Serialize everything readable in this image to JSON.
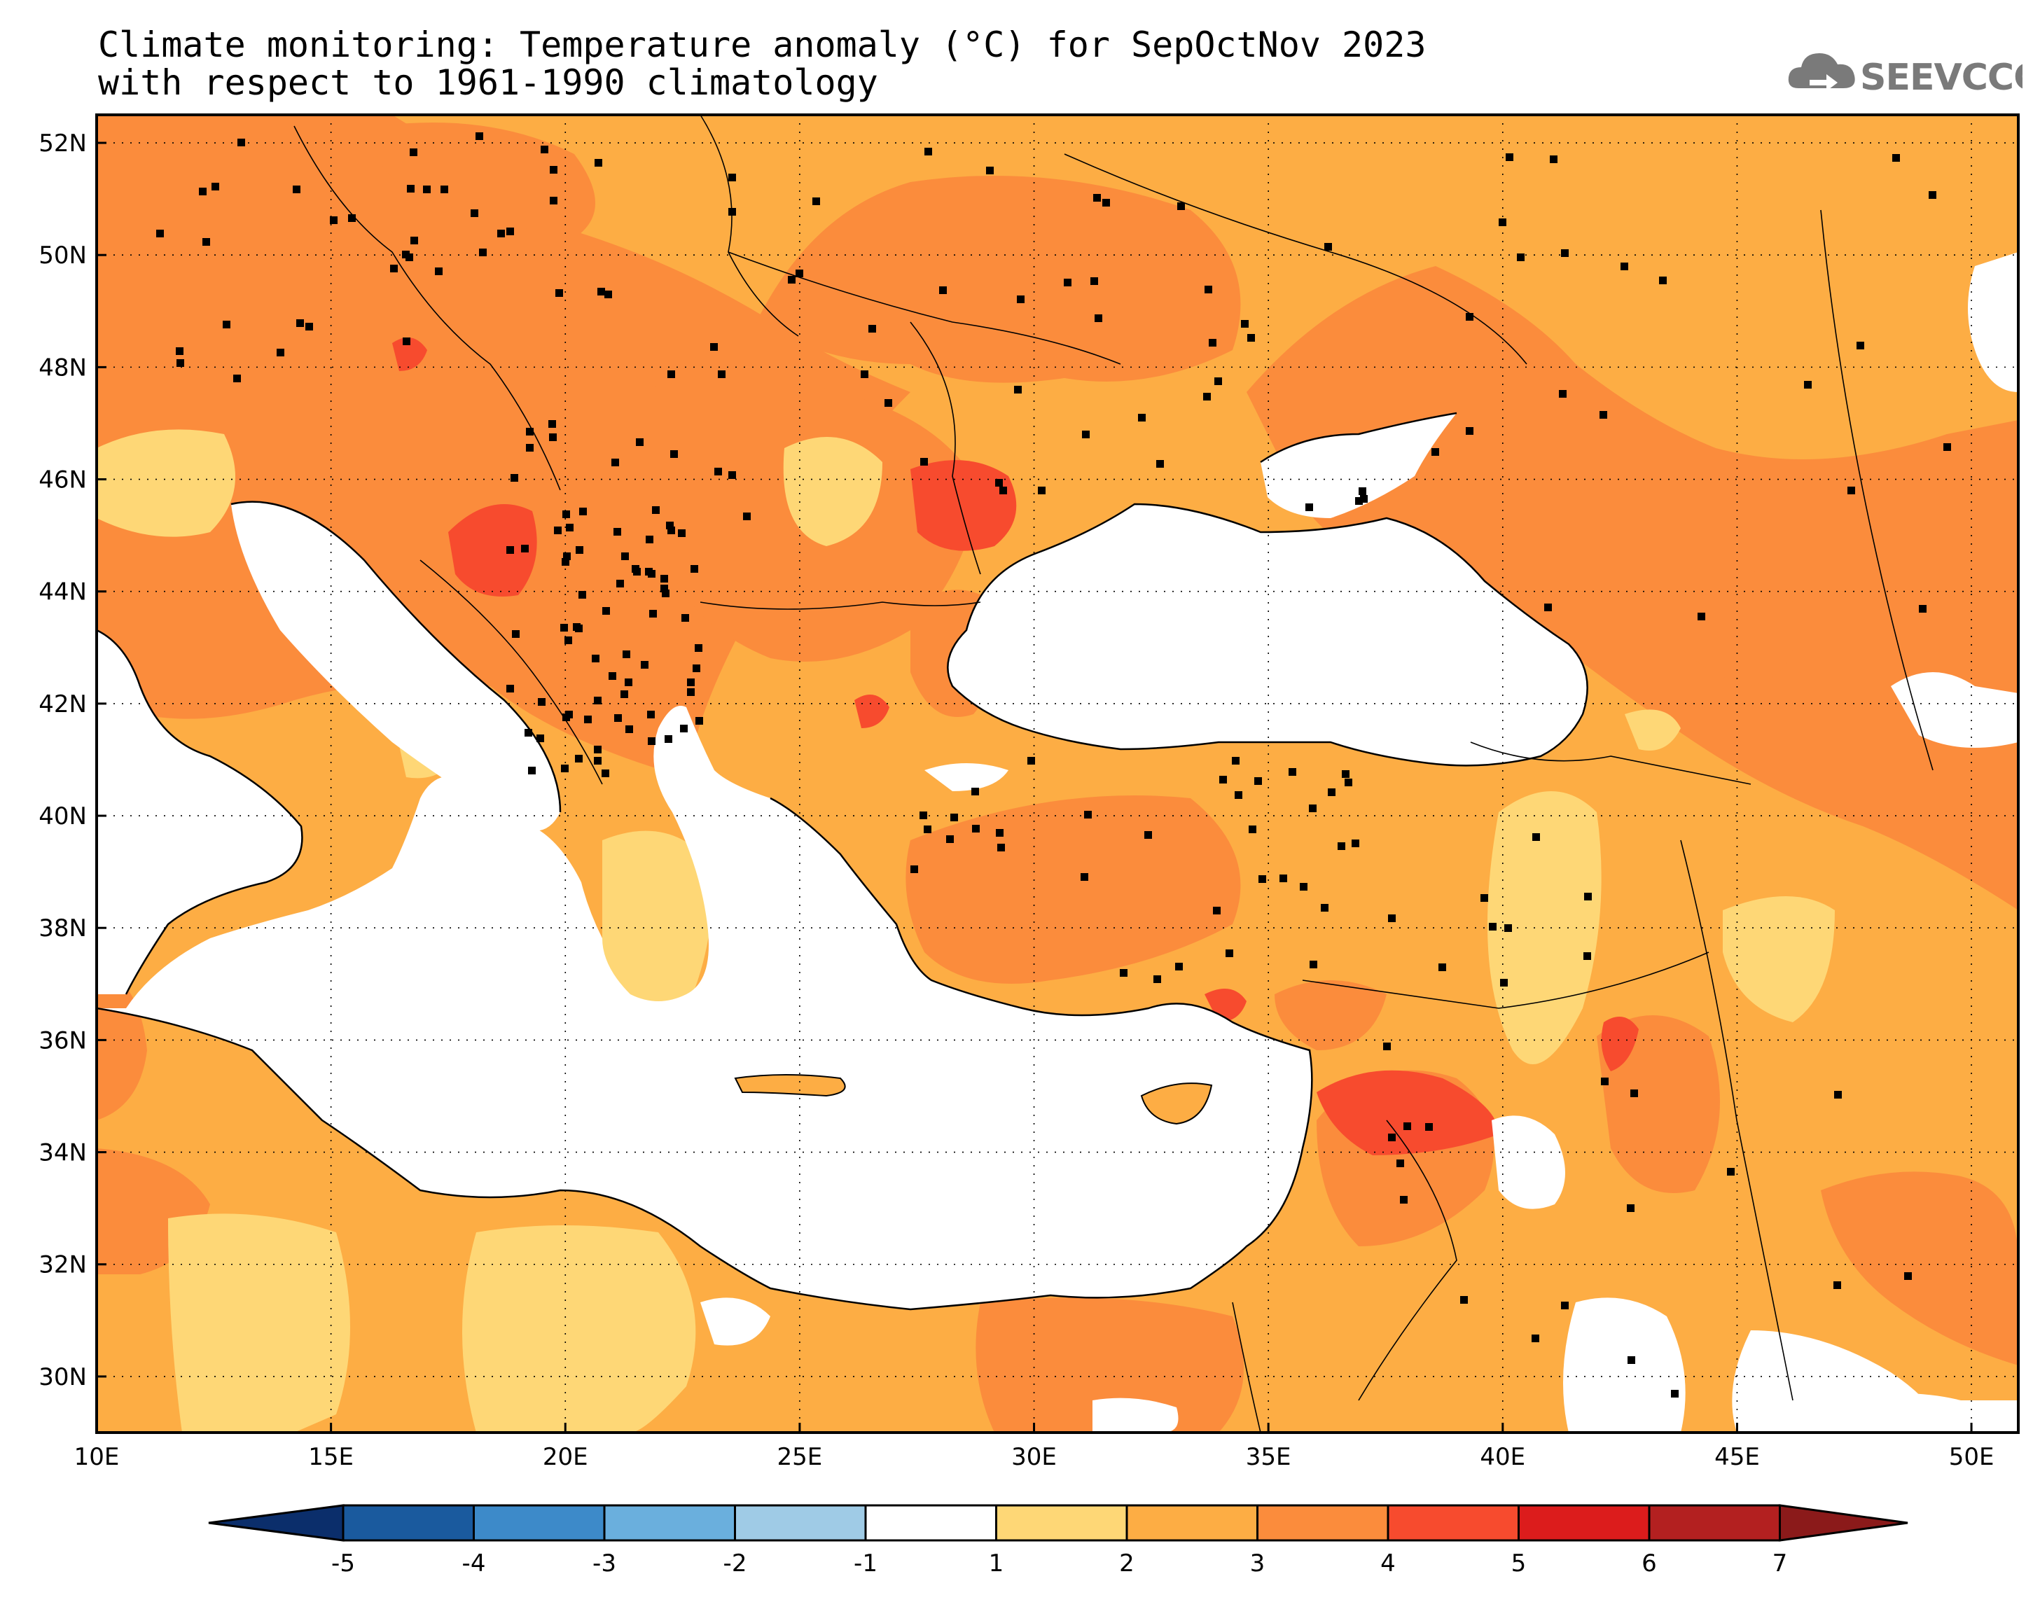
{
  "title": {
    "line1": "Climate monitoring: Temperature anomaly (°C) for SepOctNov 2023",
    "line2": "with respect to 1961-1990 climatology"
  },
  "logo": {
    "text": "SEEVCCC",
    "icon": "cloud-icon"
  },
  "map": {
    "lon_range": [
      10,
      51
    ],
    "lat_range": [
      29,
      52.5
    ],
    "x_ticks": [
      "10E",
      "15E",
      "20E",
      "25E",
      "30E",
      "35E",
      "40E",
      "45E",
      "50E"
    ],
    "x_tick_values": [
      10,
      15,
      20,
      25,
      30,
      35,
      40,
      45,
      50
    ],
    "y_ticks": [
      "30N",
      "32N",
      "34N",
      "36N",
      "38N",
      "40N",
      "42N",
      "44N",
      "46N",
      "48N",
      "50N",
      "52N"
    ],
    "y_tick_values": [
      30,
      32,
      34,
      36,
      38,
      40,
      42,
      44,
      46,
      48,
      50,
      52
    ],
    "gridlines": "dotted",
    "dominant_anomaly_class": "2 to 3",
    "sea_color": "#ffffff"
  },
  "colorbar": {
    "labels": [
      "-5",
      "-4",
      "-3",
      "-2",
      "-1",
      "1",
      "2",
      "3",
      "4",
      "5",
      "6",
      "7"
    ],
    "bins": [
      {
        "color": "#1a5a9e"
      },
      {
        "color": "#3d8ac9"
      },
      {
        "color": "#6aafdd"
      },
      {
        "color": "#9fcbe6"
      },
      {
        "color": "#ffffff"
      },
      {
        "color": "#fed776"
      },
      {
        "color": "#fdad44"
      },
      {
        "color": "#fb8c3c"
      },
      {
        "color": "#f74b2e"
      },
      {
        "color": "#dc1c1c"
      },
      {
        "color": "#b32020"
      }
    ],
    "left_arrow_color": "#0b2e6b",
    "right_arrow_color": "#8b1a1a"
  }
}
